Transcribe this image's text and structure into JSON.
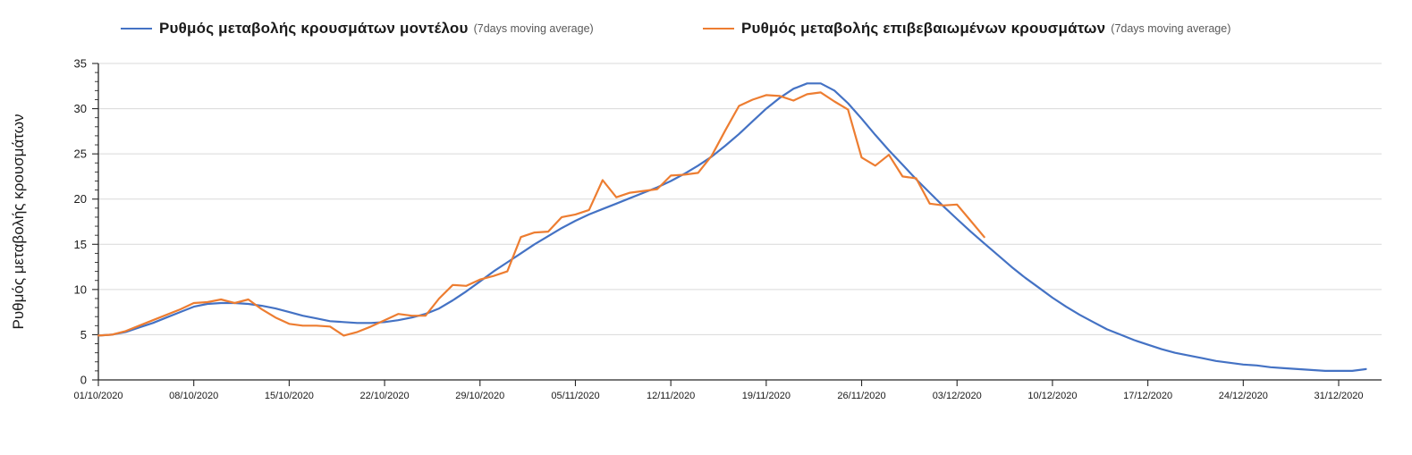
{
  "legend": {
    "items": [
      {
        "label": "Ρυθμός μεταβολής κρουσμάτων μοντέλου",
        "suffix": "(7days moving average)",
        "color": "#4472C4"
      },
      {
        "label": "Ρυθμός μεταβολής επιβεβαιωμένων κρουσμάτων",
        "suffix": "(7days moving average)",
        "color": "#ED7D31"
      }
    ]
  },
  "chart_data": {
    "type": "line",
    "title": "",
    "xlabel": "",
    "ylabel": "Ρυθμός μεταβολής κρουσμάτων",
    "ylim": [
      0,
      35
    ],
    "y_ticks": [
      0,
      5,
      10,
      15,
      20,
      25,
      30,
      35
    ],
    "y_minor_tick_step": 1,
    "grid": "horizontal-only",
    "legend_position": "top",
    "x_start_date": "01/10/2020",
    "x_tick_step_days": 7,
    "x_tick_labels": [
      "01/10/2020",
      "08/10/2020",
      "15/10/2020",
      "22/10/2020",
      "29/10/2020",
      "05/11/2020",
      "12/11/2020",
      "19/11/2020",
      "26/11/2020",
      "03/12/2020",
      "10/12/2020",
      "17/12/2020",
      "24/12/2020",
      "31/12/2020"
    ],
    "series": [
      {
        "name": "Ρυθμός μεταβολής κρουσμάτων μοντέλου (7days moving average)",
        "color": "#4472C4",
        "daily_from": "01/10/2020",
        "values": [
          4.9,
          5.0,
          5.3,
          5.8,
          6.3,
          6.9,
          7.5,
          8.1,
          8.4,
          8.5,
          8.5,
          8.4,
          8.2,
          7.9,
          7.5,
          7.1,
          6.8,
          6.5,
          6.4,
          6.3,
          6.3,
          6.4,
          6.6,
          6.9,
          7.3,
          7.9,
          8.8,
          9.8,
          10.9,
          12.0,
          13.0,
          14.0,
          15.0,
          15.9,
          16.8,
          17.6,
          18.3,
          18.9,
          19.5,
          20.1,
          20.7,
          21.3,
          22.0,
          22.8,
          23.7,
          24.7,
          25.9,
          27.2,
          28.6,
          30.0,
          31.2,
          32.2,
          32.8,
          32.8,
          32.0,
          30.6,
          28.9,
          27.1,
          25.4,
          23.8,
          22.2,
          20.7,
          19.2,
          17.8,
          16.4,
          15.1,
          13.8,
          12.5,
          11.3,
          10.2,
          9.1,
          8.1,
          7.2,
          6.4,
          5.6,
          5.0,
          4.4,
          3.9,
          3.4,
          3.0,
          2.7,
          2.4,
          2.1,
          1.9,
          1.7,
          1.6,
          1.4,
          1.3,
          1.2,
          1.1,
          1.0,
          1.0,
          1.0,
          1.2
        ]
      },
      {
        "name": "Ρυθμός μεταβολής επιβεβαιωμένων κρουσμάτων (7days moving average)",
        "color": "#ED7D31",
        "daily_from": "01/10/2020",
        "values": [
          4.9,
          5.0,
          5.4,
          6.0,
          6.6,
          7.2,
          7.8,
          8.5,
          8.6,
          8.9,
          8.5,
          8.9,
          7.8,
          6.9,
          6.2,
          6.0,
          6.0,
          5.9,
          4.9,
          5.3,
          5.9,
          6.6,
          7.3,
          7.1,
          7.1,
          9.0,
          10.5,
          10.4,
          11.1,
          11.5,
          12.0,
          15.8,
          16.3,
          16.4,
          18.0,
          18.3,
          18.8,
          22.1,
          20.2,
          20.7,
          20.9,
          21.1,
          22.6,
          22.7,
          22.9,
          24.8,
          27.6,
          30.3,
          31.0,
          31.5,
          31.4,
          30.9,
          31.6,
          31.8,
          30.8,
          29.9,
          24.6,
          23.7,
          24.9,
          22.5,
          22.3,
          19.5,
          19.3,
          19.4,
          17.6,
          15.8
        ]
      }
    ]
  },
  "style": {
    "grid_color": "#d9d9d9",
    "axis_color": "#262626"
  }
}
